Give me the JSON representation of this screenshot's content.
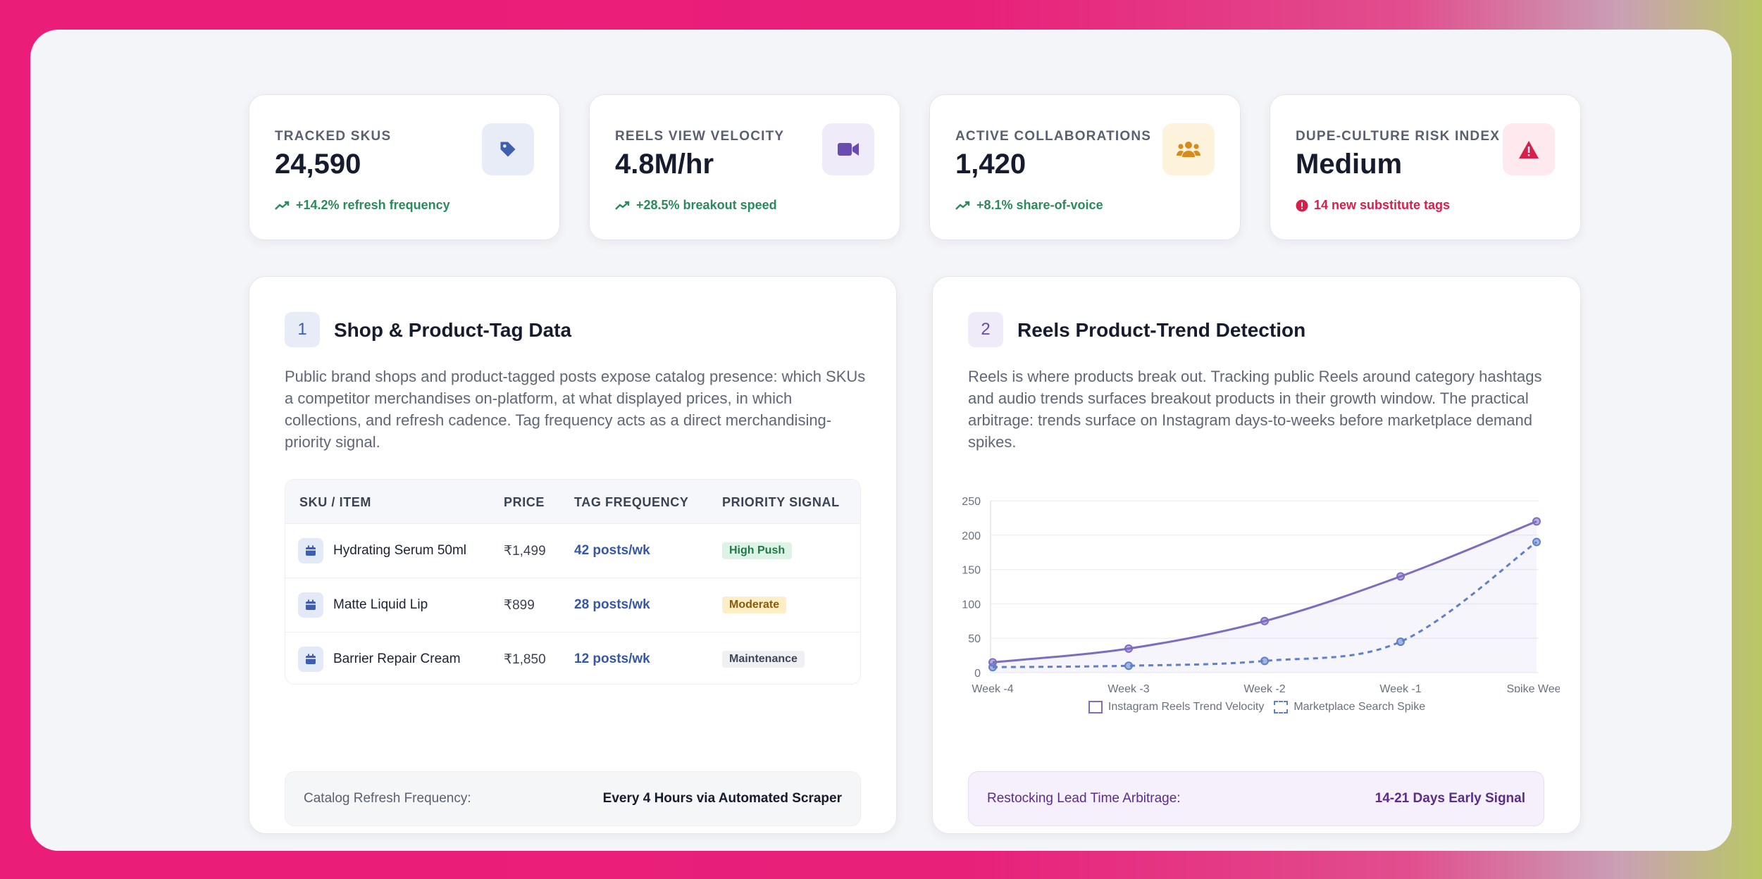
{
  "kpis": [
    {
      "label": "TRACKED SKUS",
      "value": "24,590",
      "delta": "+14.2% refresh frequency",
      "icon": "tag-icon",
      "icon_color": "#3e5fb0",
      "icon_bg": "#e7ecf7",
      "alert": false
    },
    {
      "label": "REELS VIEW VELOCITY",
      "value": "4.8M/hr",
      "delta": "+28.5% breakout speed",
      "icon": "video-icon",
      "icon_color": "#6a4bb0",
      "icon_bg": "#efebf8",
      "alert": false
    },
    {
      "label": "ACTIVE COLLABORATIONS",
      "value": "1,420",
      "delta": "+8.1% share-of-voice",
      "icon": "users-icon",
      "icon_color": "#d98a1c",
      "icon_bg": "#fdf3dc",
      "alert": false
    },
    {
      "label": "DUPE-CULTURE RISK INDEX",
      "value": "Medium",
      "delta": "14 new substitute tags",
      "icon": "warning-icon",
      "icon_color": "#d61f4b",
      "icon_bg": "#fde9ee",
      "alert": true
    }
  ],
  "panel1": {
    "number": "1",
    "title": "Shop & Product-Tag Data",
    "description": "Public brand shops and product-tagged posts expose catalog presence: which SKUs a competitor merchandises on-platform, at what displayed prices, in which collections, and refresh cadence. Tag frequency acts as a direct merchandising-priority signal.",
    "table": {
      "headers": [
        "SKU / ITEM",
        "PRICE",
        "TAG FREQUENCY",
        "PRIORITY SIGNAL"
      ],
      "rows": [
        {
          "name": "Hydrating Serum 50ml",
          "price": "₹1,499",
          "freq": "42 posts/wk",
          "signal": "High Push",
          "signal_type": "high"
        },
        {
          "name": "Matte Liquid Lip",
          "price": "₹899",
          "freq": "28 posts/wk",
          "signal": "Moderate",
          "signal_type": "mod"
        },
        {
          "name": "Barrier Repair Cream",
          "price": "₹1,850",
          "freq": "12 posts/wk",
          "signal": "Maintenance",
          "signal_type": "maint"
        }
      ]
    },
    "footer": {
      "label": "Catalog Refresh Frequency:",
      "value": "Every 4 Hours via Automated Scraper"
    }
  },
  "panel2": {
    "number": "2",
    "title": "Reels Product-Trend Detection",
    "description": "Reels is where products break out. Tracking public Reels around category hashtags and audio trends surfaces breakout products in their growth window. The practical arbitrage: trends surface on Instagram days-to-weeks before marketplace demand spikes.",
    "footer": {
      "label": "Restocking Lead Time Arbitrage:",
      "value": "14-21 Days Early Signal"
    }
  },
  "chart_data": {
    "type": "line",
    "categories": [
      "Week -4",
      "Week -3",
      "Week -2",
      "Week -1",
      "Spike Week"
    ],
    "series": [
      {
        "name": "Instagram Reels Trend Velocity",
        "values": [
          15,
          35,
          75,
          140,
          220
        ],
        "color": "#7f6cc0",
        "style": "solid"
      },
      {
        "name": "Marketplace Search Spike",
        "values": [
          8,
          10,
          17,
          45,
          190
        ],
        "color": "#5f80c7",
        "style": "dashed"
      }
    ],
    "ylim": [
      0,
      250
    ],
    "yticks": [
      0,
      50,
      100,
      150,
      200,
      250
    ],
    "grid": true,
    "legend": "bottom"
  }
}
